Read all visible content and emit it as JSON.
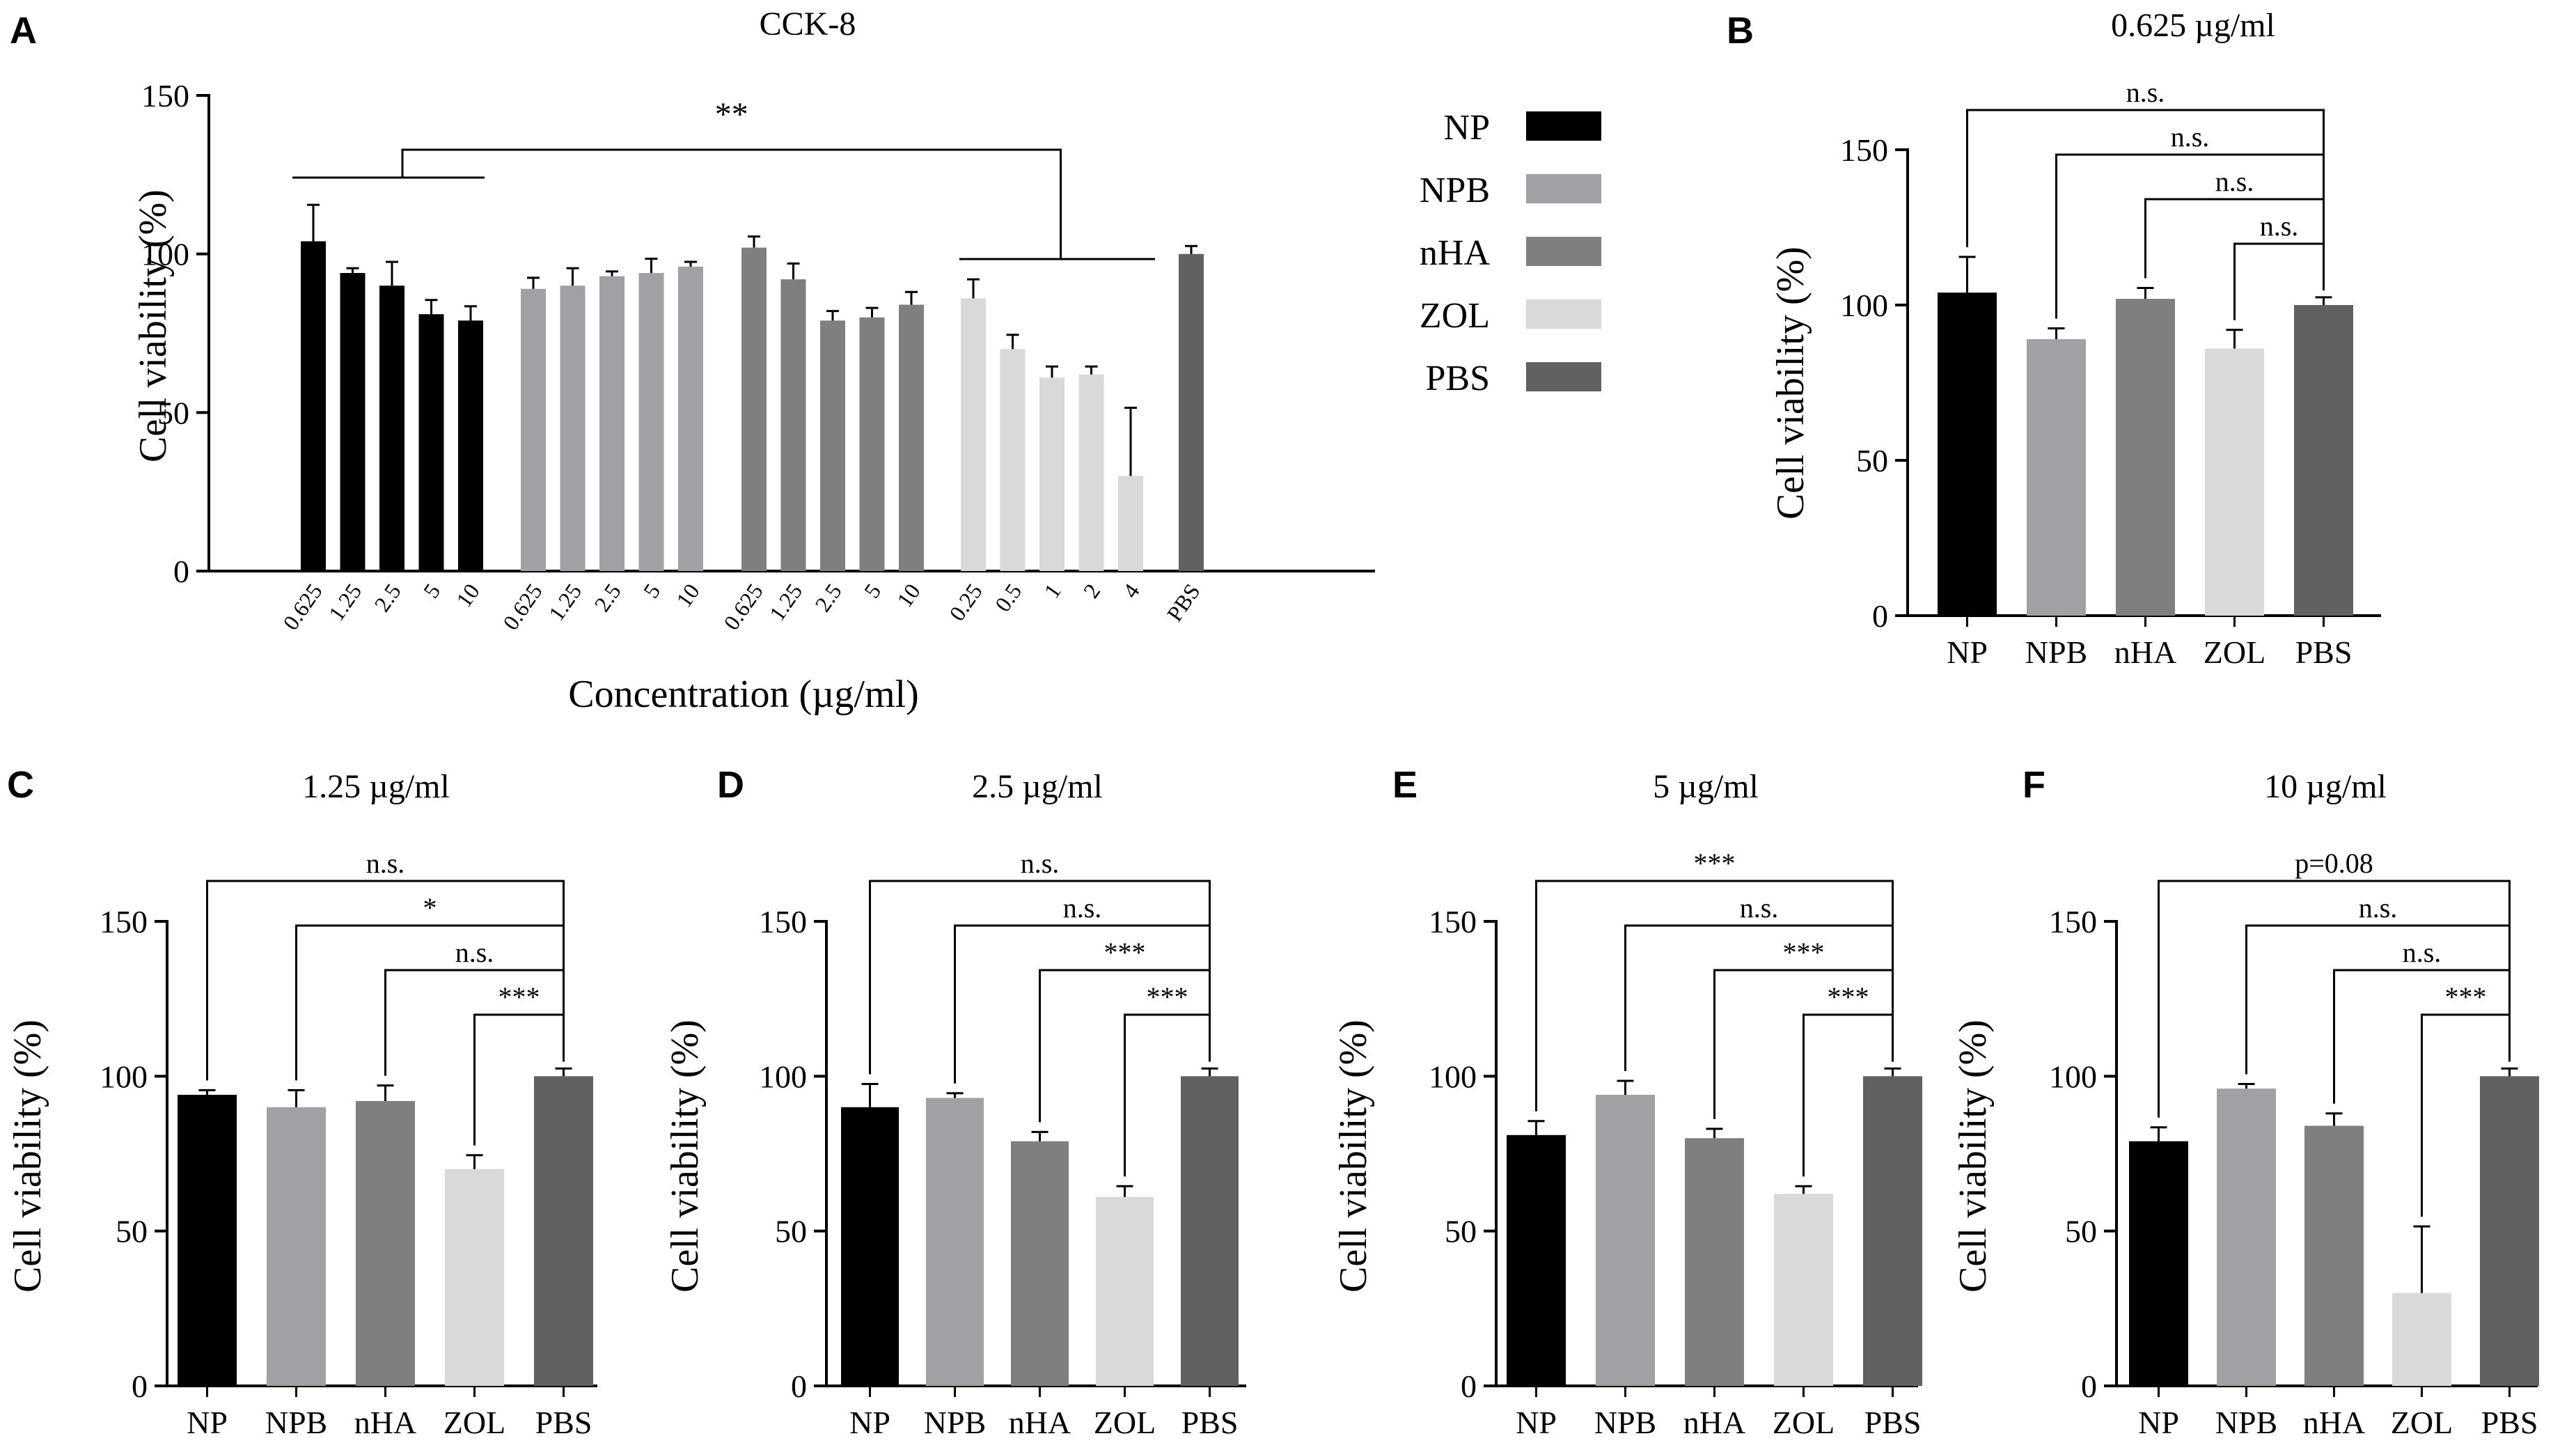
{
  "colors": {
    "NP": "#000000",
    "NPB": "#a1a1a5",
    "nHA": "#7f7f7f",
    "ZOL": "#d9d9d9",
    "PBS": "#616161"
  },
  "legend": [
    "NP",
    "NPB",
    "nHA",
    "ZOL",
    "PBS"
  ],
  "chart_data": [
    {
      "panel": "A",
      "type": "bar",
      "title": "CCK-8",
      "xlabel": "Concentration (µg/ml)",
      "ylabel": "Cell viability (%)",
      "ylim": [
        0,
        150
      ],
      "yticks": [
        "0",
        "50",
        "100",
        "150"
      ],
      "groups": [
        {
          "name": "NP",
          "labels": [
            "0.625",
            "1.25",
            "2.5",
            "5",
            "10"
          ],
          "values": [
            104,
            94,
            90,
            81,
            79
          ],
          "errors": [
            11.5,
            1.5,
            7.5,
            4.5,
            4.5
          ]
        },
        {
          "name": "NPB",
          "labels": [
            "0.625",
            "1.25",
            "2.5",
            "5",
            "10"
          ],
          "values": [
            89,
            90,
            93,
            94,
            96
          ],
          "errors": [
            3.5,
            5.5,
            1.5,
            4.5,
            1.5
          ]
        },
        {
          "name": "nHA",
          "labels": [
            "0.625",
            "1.25",
            "2.5",
            "5",
            "10"
          ],
          "values": [
            102,
            92,
            79,
            80,
            84
          ],
          "errors": [
            3.5,
            5,
            3,
            3,
            4
          ]
        },
        {
          "name": "ZOL",
          "labels": [
            "0.25",
            "0.5",
            "1",
            "2",
            "4"
          ],
          "values": [
            86,
            70,
            61,
            62,
            30
          ],
          "errors": [
            6,
            4.5,
            3.5,
            2.5,
            21.5
          ]
        },
        {
          "name": "PBS",
          "labels": [
            "PBS"
          ],
          "values": [
            100
          ],
          "errors": [
            2.5
          ]
        }
      ],
      "annotation": "**"
    },
    {
      "panel": "B",
      "type": "bar",
      "title": "0.625 µg/ml",
      "ylabel": "Cell viability (%)",
      "ylim": [
        0,
        150
      ],
      "yticks": [
        "0",
        "50",
        "100",
        "150"
      ],
      "categories": [
        "NP",
        "NPB",
        "nHA",
        "ZOL",
        "PBS"
      ],
      "values": [
        104,
        89,
        102,
        86,
        100
      ],
      "errors": [
        11.5,
        3.5,
        3.5,
        6,
        2.5
      ],
      "comparisons": [
        "n.s.",
        "n.s.",
        "n.s.",
        "n.s."
      ]
    },
    {
      "panel": "C",
      "type": "bar",
      "title": "1.25 µg/ml",
      "ylabel": "Cell viability (%)",
      "ylim": [
        0,
        150
      ],
      "yticks": [
        "0",
        "50",
        "100",
        "150"
      ],
      "categories": [
        "NP",
        "NPB",
        "nHA",
        "ZOL",
        "PBS"
      ],
      "values": [
        94,
        90,
        92,
        70,
        100
      ],
      "errors": [
        1.5,
        5.5,
        5,
        4.5,
        2.5
      ],
      "comparisons": [
        "n.s.",
        "*",
        "n.s.",
        "***"
      ]
    },
    {
      "panel": "D",
      "type": "bar",
      "title": "2.5 µg/ml",
      "ylabel": "Cell viability (%)",
      "ylim": [
        0,
        150
      ],
      "yticks": [
        "0",
        "50",
        "100",
        "150"
      ],
      "categories": [
        "NP",
        "NPB",
        "nHA",
        "ZOL",
        "PBS"
      ],
      "values": [
        90,
        93,
        79,
        61,
        100
      ],
      "errors": [
        7.5,
        1.5,
        3,
        3.5,
        2.5
      ],
      "comparisons": [
        "n.s.",
        "n.s.",
        "***",
        "***"
      ]
    },
    {
      "panel": "E",
      "type": "bar",
      "title": "5 µg/ml",
      "ylabel": "Cell viability (%)",
      "ylim": [
        0,
        150
      ],
      "yticks": [
        "0",
        "50",
        "100",
        "150"
      ],
      "categories": [
        "NP",
        "NPB",
        "nHA",
        "ZOL",
        "PBS"
      ],
      "values": [
        81,
        94,
        80,
        62,
        100
      ],
      "errors": [
        4.5,
        4.5,
        3,
        2.5,
        2.5
      ],
      "comparisons": [
        "***",
        "n.s.",
        "***",
        "***"
      ]
    },
    {
      "panel": "F",
      "type": "bar",
      "title": "10 µg/ml",
      "ylabel": "Cell viability (%)",
      "ylim": [
        0,
        150
      ],
      "yticks": [
        "0",
        "50",
        "100",
        "150"
      ],
      "categories": [
        "NP",
        "NPB",
        "nHA",
        "ZOL",
        "PBS"
      ],
      "values": [
        79,
        96,
        84,
        30,
        100
      ],
      "errors": [
        4.5,
        1.5,
        4,
        21.5,
        2.5
      ],
      "comparisons": [
        "p=0.08",
        "n.s.",
        "n.s.",
        "***"
      ]
    }
  ]
}
